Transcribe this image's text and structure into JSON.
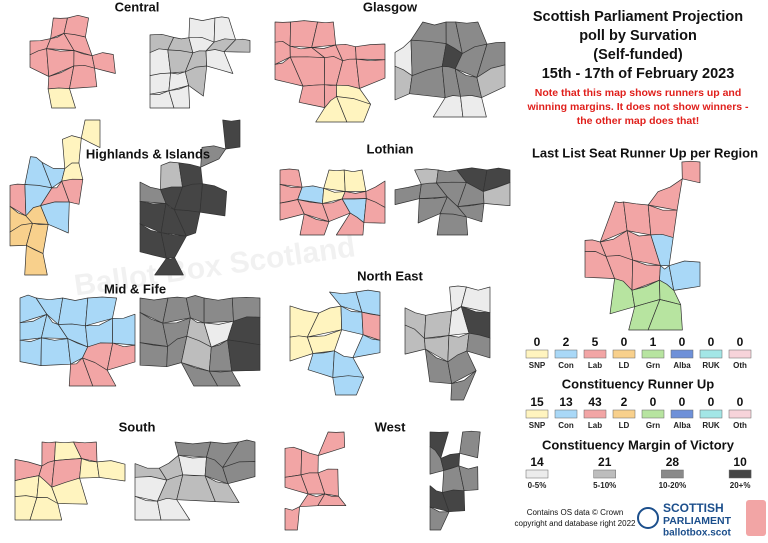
{
  "title": [
    "Scottish Parliament Projection",
    "poll by Survation",
    "(Self-funded)",
    "15th - 17th of February 2023"
  ],
  "note": [
    "Note that this map shows runners up and",
    "winning margins. It does not show winners -",
    "the other map does that!"
  ],
  "regions": [
    "Central",
    "Glasgow",
    "Highlands & Islands",
    "Lothian",
    "Mid & Fife",
    "North East",
    "South",
    "West"
  ],
  "parties": [
    {
      "name": "SNP",
      "color": "#fff4bf"
    },
    {
      "name": "Con",
      "color": "#a9d8f7"
    },
    {
      "name": "Lab",
      "color": "#f2a5a5"
    },
    {
      "name": "LD",
      "color": "#f8d08c"
    },
    {
      "name": "Grn",
      "color": "#b7e4a0"
    },
    {
      "name": "Alba",
      "color": "#6e90d8"
    },
    {
      "name": "RUK",
      "color": "#a3e6e6"
    },
    {
      "name": "Oth",
      "color": "#f7d3da"
    }
  ],
  "list_runner_up": {
    "title": "Last List Seat Runner Up per Region",
    "counts": [
      0,
      2,
      5,
      0,
      1,
      0,
      0,
      0
    ]
  },
  "constituency_runner_up": {
    "title": "Constituency Runner Up",
    "counts": [
      15,
      13,
      43,
      2,
      0,
      0,
      0,
      0
    ]
  },
  "margin_of_victory": {
    "title": "Constituency Margin of Victory",
    "bands": [
      {
        "label": "0-5%",
        "count": 14,
        "color": "#ececec"
      },
      {
        "label": "5-10%",
        "count": 21,
        "color": "#bdbdbd"
      },
      {
        "label": "10-20%",
        "count": 28,
        "color": "#8a8a8a"
      },
      {
        "label": "20+%",
        "count": 10,
        "color": "#454545"
      }
    ]
  },
  "watermark": "Ballot Box Scotland",
  "credit": [
    "Contains OS data © Crown",
    "copyright and database right 2022"
  ],
  "logo": {
    "line1": "SCOTTISH",
    "line2": "PARLIAMENT",
    "url": "ballotbox.scot"
  }
}
